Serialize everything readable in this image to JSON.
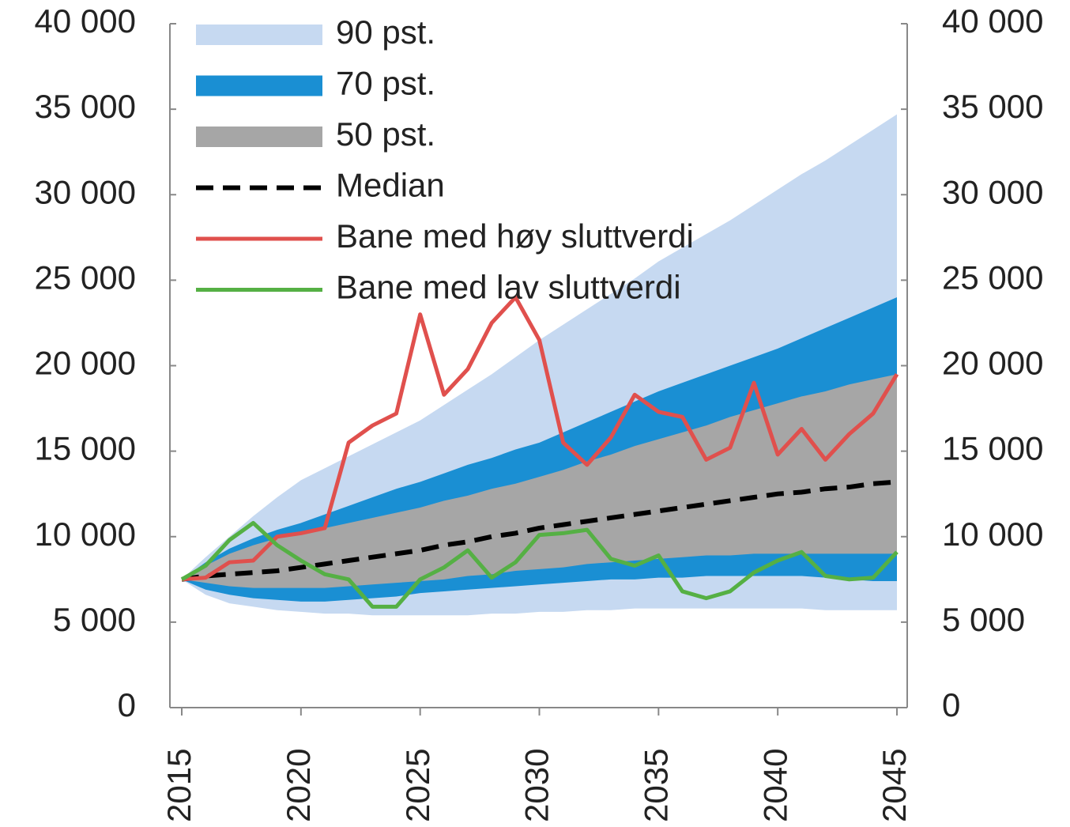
{
  "chart_data": {
    "type": "fan",
    "x": [
      2015,
      2016,
      2017,
      2018,
      2019,
      2020,
      2021,
      2022,
      2023,
      2024,
      2025,
      2026,
      2027,
      2028,
      2029,
      2030,
      2031,
      2032,
      2033,
      2034,
      2035,
      2036,
      2037,
      2038,
      2039,
      2040,
      2041,
      2042,
      2043,
      2044,
      2045
    ],
    "xlim": [
      2015,
      2045
    ],
    "xticks": [
      2015,
      2020,
      2025,
      2030,
      2035,
      2040,
      2045
    ],
    "ylim": [
      0,
      40000
    ],
    "yticks": [
      0,
      {
        "value": 5000,
        "label": "5 000"
      },
      {
        "value": 10000,
        "label": "10 000"
      },
      {
        "value": 15000,
        "label": "15 000"
      },
      {
        "value": 20000,
        "label": "20 000"
      },
      {
        "value": 25000,
        "label": "25 000"
      },
      {
        "value": 30000,
        "label": "30 000"
      },
      {
        "value": 35000,
        "label": "35 000"
      },
      {
        "value": 40000,
        "label": "40 000"
      }
    ],
    "y2lim": [
      0,
      40000
    ],
    "y2ticks": [
      0,
      {
        "value": 5000,
        "label": "5 000"
      },
      {
        "value": 10000,
        "label": "10 000"
      },
      {
        "value": 15000,
        "label": "15 000"
      },
      {
        "value": 20000,
        "label": "20 000"
      },
      {
        "value": 25000,
        "label": "25 000"
      },
      {
        "value": 30000,
        "label": "30 000"
      },
      {
        "value": 35000,
        "label": "35 000"
      },
      {
        "value": 40000,
        "label": "40 000"
      }
    ],
    "legend": "top-left",
    "bands": [
      {
        "name": "90 pst.",
        "color": "#c6d9f1",
        "upper": [
          7500,
          8800,
          10000,
          11200,
          12300,
          13300,
          14000,
          14700,
          15400,
          16100,
          16800,
          17700,
          18600,
          19500,
          20500,
          21500,
          22400,
          23300,
          24200,
          25100,
          26100,
          26900,
          27700,
          28500,
          29400,
          30300,
          31200,
          32000,
          32900,
          33800,
          34700
        ],
        "lower": [
          7500,
          6600,
          6100,
          5900,
          5700,
          5600,
          5500,
          5500,
          5400,
          5400,
          5400,
          5400,
          5400,
          5500,
          5500,
          5600,
          5600,
          5700,
          5700,
          5800,
          5800,
          5800,
          5800,
          5800,
          5800,
          5800,
          5800,
          5700,
          5700,
          5700,
          5700
        ]
      },
      {
        "name": "70 pst.",
        "color": "#1a8fd3",
        "upper": [
          7500,
          8500,
          9300,
          9900,
          10400,
          10800,
          11300,
          11800,
          12300,
          12800,
          13200,
          13700,
          14200,
          14600,
          15100,
          15500,
          16100,
          16700,
          17300,
          17900,
          18500,
          19000,
          19500,
          20000,
          20500,
          21000,
          21600,
          22200,
          22800,
          23400,
          24000
        ],
        "lower": [
          7500,
          6900,
          6600,
          6400,
          6300,
          6200,
          6200,
          6300,
          6400,
          6500,
          6700,
          6800,
          6900,
          7000,
          7100,
          7200,
          7300,
          7400,
          7500,
          7500,
          7600,
          7600,
          7700,
          7700,
          7700,
          7700,
          7700,
          7600,
          7500,
          7400,
          7400
        ]
      },
      {
        "name": "50 pst.",
        "color": "#a6a6a6",
        "upper": [
          7500,
          8300,
          9000,
          9500,
          9900,
          10200,
          10500,
          10800,
          11100,
          11400,
          11700,
          12100,
          12400,
          12800,
          13100,
          13500,
          13900,
          14400,
          14800,
          15300,
          15700,
          16100,
          16500,
          17000,
          17400,
          17800,
          18200,
          18500,
          18900,
          19200,
          19500
        ],
        "lower": [
          7500,
          7300,
          7100,
          7000,
          7000,
          7000,
          7000,
          7100,
          7200,
          7300,
          7400,
          7500,
          7700,
          7800,
          8000,
          8100,
          8200,
          8400,
          8500,
          8600,
          8700,
          8800,
          8900,
          8900,
          9000,
          9000,
          9000,
          9000,
          9000,
          9000,
          9000
        ]
      }
    ],
    "series": [
      {
        "name": "Median",
        "color": "#000000",
        "dashed": true,
        "values": [
          7500,
          7700,
          7800,
          7900,
          8000,
          8200,
          8400,
          8600,
          8800,
          9000,
          9200,
          9500,
          9700,
          10000,
          10200,
          10500,
          10700,
          10900,
          11100,
          11300,
          11500,
          11700,
          11900,
          12100,
          12300,
          12500,
          12600,
          12800,
          12900,
          13100,
          13200
        ]
      },
      {
        "name": "Bane med høy sluttverdi",
        "color": "#e0504d",
        "dashed": false,
        "values": [
          7500,
          7600,
          8500,
          8600,
          10000,
          10200,
          10500,
          15500,
          16500,
          17200,
          23000,
          18300,
          19800,
          22500,
          24000,
          21500,
          15500,
          14200,
          15800,
          18300,
          17300,
          17000,
          14500,
          15200,
          19000,
          14800,
          16300,
          14500,
          16000,
          17200,
          19500
        ]
      },
      {
        "name": "Bane med lav sluttverdi",
        "color": "#55b044",
        "dashed": false,
        "values": [
          7500,
          8300,
          9800,
          10800,
          9500,
          8600,
          7800,
          7500,
          5900,
          5900,
          7500,
          8200,
          9200,
          7600,
          8500,
          10100,
          10200,
          10400,
          8700,
          8300,
          8900,
          6800,
          6400,
          6800,
          7900,
          8600,
          9100,
          7700,
          7500,
          7600,
          9100
        ]
      }
    ]
  }
}
